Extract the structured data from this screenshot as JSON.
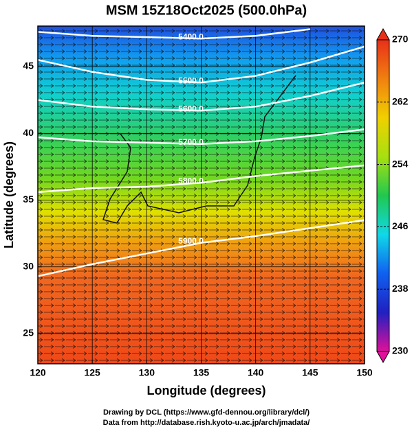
{
  "chart_data": {
    "type": "contour-map",
    "title": "MSM 15Z18Oct2025 (500.0hPa)",
    "x_label": "Longitude (degrees)",
    "y_label": "Latitude  (degrees)",
    "xlim": [
      120,
      150
    ],
    "ylim": [
      22.74,
      48.03
    ],
    "xticks": [
      120,
      125,
      130,
      135,
      140,
      145,
      150
    ],
    "yticks": [
      25,
      30,
      35,
      40,
      45
    ],
    "contour_lons": [
      120,
      125,
      130,
      135,
      140,
      145,
      150
    ],
    "contours": [
      {
        "level": {
          "value": 5400,
          "label": "5400.0"
        },
        "lats": [
          47.6,
          47.3,
          47.2,
          47.1,
          47.3,
          47.8,
          null
        ]
      },
      {
        "level": {
          "value": 5500,
          "label": "5500.0"
        },
        "lats": [
          45.5,
          44.6,
          44.0,
          43.8,
          44.3,
          45.3,
          46.5
        ]
      },
      {
        "level": {
          "value": 5600,
          "label": "5600.0"
        },
        "lats": [
          42.5,
          42.0,
          41.8,
          41.7,
          42.0,
          42.8,
          43.8
        ]
      },
      {
        "level": {
          "value": 5700,
          "label": "5700.0"
        },
        "lats": [
          39.7,
          39.4,
          39.3,
          39.2,
          39.4,
          39.8,
          40.3
        ]
      },
      {
        "level": {
          "value": 5800,
          "label": "5800.0"
        },
        "lats": [
          35.6,
          35.9,
          36.0,
          36.3,
          36.8,
          37.2,
          37.6
        ]
      },
      {
        "level": {
          "value": 5900,
          "label": "5900.0"
        },
        "lats": [
          29.3,
          30.2,
          31.0,
          31.8,
          32.3,
          32.9,
          33.5
        ]
      }
    ],
    "colorbar": {
      "lim": [
        230,
        270
      ],
      "ticks": [
        230,
        238,
        246,
        254,
        262,
        270
      ],
      "colors": [
        "#e0109a",
        "#2020c0",
        "#1060f0",
        "#10d8e8",
        "#20c850",
        "#a8e010",
        "#f0d000",
        "#f08010",
        "#e83018"
      ]
    },
    "footer": [
      "Drawing by DCL (https://www.gfd-dennou.org/library/dcl/)",
      "Data from http://database.rish.kyoto-u.ac.jp/arch/jmadata/"
    ]
  }
}
